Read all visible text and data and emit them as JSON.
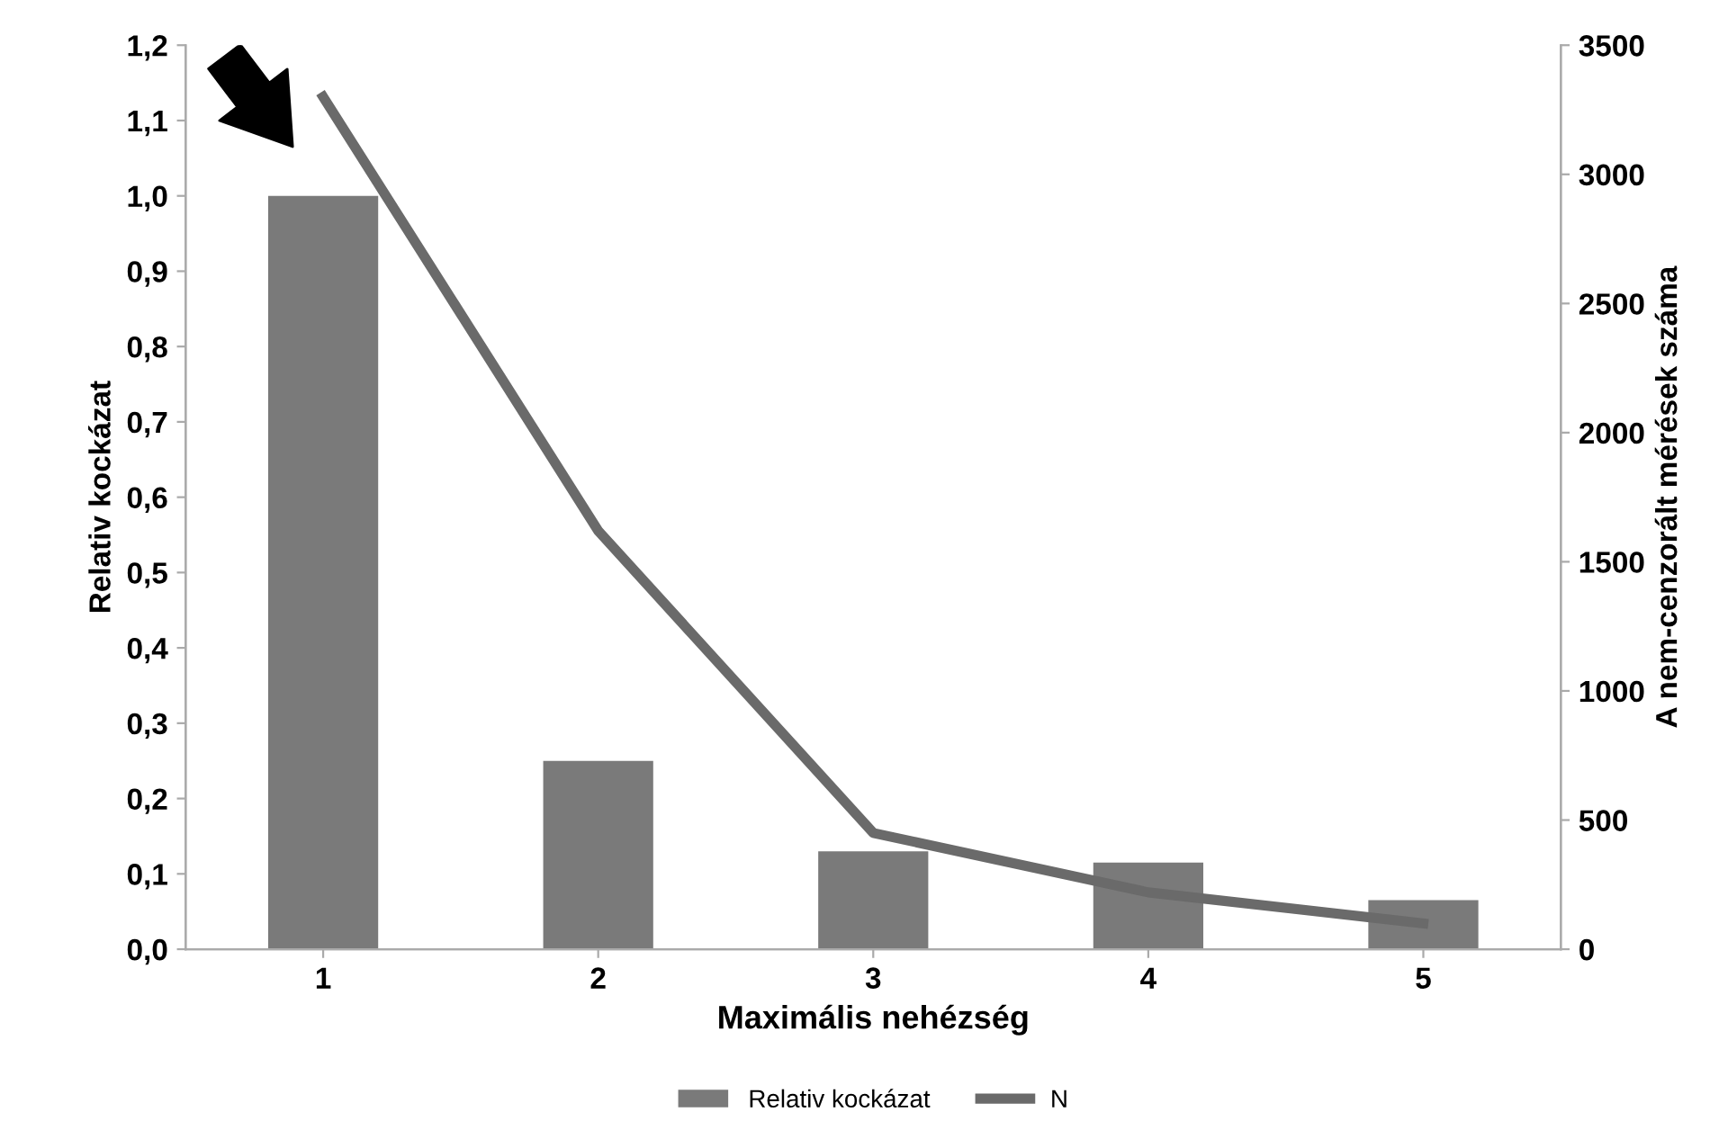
{
  "chart_data": {
    "type": "bar",
    "xlabel": "Maximális nehézség",
    "ylabel": "Relativ kockázat",
    "y2label": "A nem-cenzorált mérések száma",
    "categories": [
      "1",
      "2",
      "3",
      "4",
      "5"
    ],
    "series": [
      {
        "name": "Relativ kockázat",
        "color": "#7a7a7a",
        "values": [
          1.0,
          0.25,
          0.13,
          0.115,
          0.065
        ]
      },
      {
        "name": "N",
        "type": "line",
        "axis": "y2",
        "color": "#6a6a6a",
        "values": [
          3300,
          1620,
          450,
          220,
          100
        ]
      }
    ],
    "ylim": [
      0,
      1.2
    ],
    "yticks": [
      {
        "value": 0,
        "label": "0,0"
      },
      {
        "value": 0.1,
        "label": "0,1"
      },
      {
        "value": 0.2,
        "label": "0,2"
      },
      {
        "value": 0.3,
        "label": "0,3"
      },
      {
        "value": 0.4,
        "label": "0,4"
      },
      {
        "value": 0.5,
        "label": "0,5"
      },
      {
        "value": 0.6,
        "label": "0,6"
      },
      {
        "value": 0.7,
        "label": "0,7"
      },
      {
        "value": 0.8,
        "label": "0,8"
      },
      {
        "value": 0.9,
        "label": "0,9"
      },
      {
        "value": 1.0,
        "label": "1,0"
      },
      {
        "value": 1.1,
        "label": "1,1"
      },
      {
        "value": 1.2,
        "label": "1,2"
      }
    ],
    "y2lim": [
      0,
      3500
    ],
    "y2ticks": [
      0,
      500,
      1000,
      1500,
      2000,
      2500,
      3000,
      3500
    ],
    "grid": false,
    "legend": "bottom",
    "marker": "none",
    "line_style": "solid"
  }
}
